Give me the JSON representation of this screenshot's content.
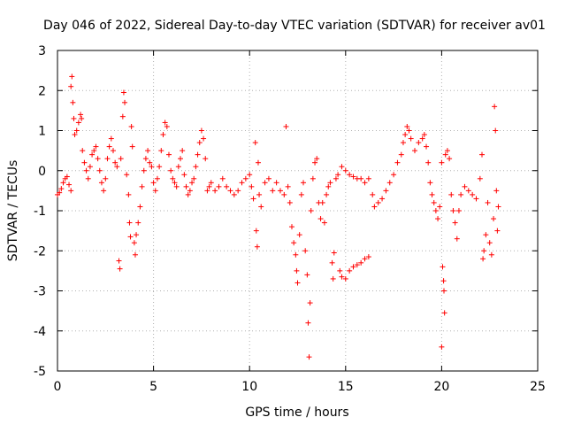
{
  "chart_data": {
    "type": "scatter",
    "title": "Day 046 of 2022, Sidereal Day-to-day VTEC variation (SDTVAR) for receiver av01",
    "xlabel": "GPS time / hours",
    "ylabel": "SDTVAR / TECUs",
    "xlim": [
      0,
      25
    ],
    "ylim": [
      -5,
      3
    ],
    "xticks": [
      0,
      5,
      10,
      15,
      20,
      25
    ],
    "yticks": [
      -5,
      -4,
      -3,
      -2,
      -1,
      0,
      1,
      2,
      3
    ],
    "xtick_labels": [
      "0",
      "5",
      "10",
      "15",
      "20",
      "25"
    ],
    "ytick_labels": [
      "-5",
      "-4",
      "-3",
      "-2",
      "-1",
      "0",
      "1",
      "2",
      "3"
    ],
    "grid": true,
    "marker": "+",
    "color": "#ff0000",
    "series": [
      {
        "name": "av01",
        "points": [
          [
            0.0,
            -0.6
          ],
          [
            0.1,
            -0.55
          ],
          [
            0.2,
            -0.45
          ],
          [
            0.3,
            -0.3
          ],
          [
            0.4,
            -0.2
          ],
          [
            0.5,
            -0.15
          ],
          [
            0.6,
            -0.35
          ],
          [
            0.7,
            -0.5
          ],
          [
            0.7,
            2.1
          ],
          [
            0.75,
            2.35
          ],
          [
            0.8,
            1.7
          ],
          [
            0.85,
            1.3
          ],
          [
            0.9,
            0.9
          ],
          [
            1.0,
            1.0
          ],
          [
            1.1,
            1.2
          ],
          [
            1.2,
            1.4
          ],
          [
            1.25,
            1.3
          ],
          [
            1.3,
            0.5
          ],
          [
            1.4,
            0.2
          ],
          [
            1.5,
            0.0
          ],
          [
            1.6,
            -0.2
          ],
          [
            1.7,
            0.1
          ],
          [
            1.8,
            0.4
          ],
          [
            1.9,
            0.5
          ],
          [
            2.0,
            0.6
          ],
          [
            2.1,
            0.3
          ],
          [
            2.2,
            0.0
          ],
          [
            2.3,
            -0.3
          ],
          [
            2.4,
            -0.5
          ],
          [
            2.5,
            -0.2
          ],
          [
            2.6,
            0.3
          ],
          [
            2.7,
            0.6
          ],
          [
            2.8,
            0.8
          ],
          [
            2.9,
            0.5
          ],
          [
            3.0,
            0.2
          ],
          [
            3.1,
            0.1
          ],
          [
            3.2,
            -2.25
          ],
          [
            3.25,
            -2.45
          ],
          [
            3.3,
            0.3
          ],
          [
            3.4,
            1.35
          ],
          [
            3.45,
            1.95
          ],
          [
            3.5,
            1.7
          ],
          [
            3.6,
            -0.1
          ],
          [
            3.7,
            -0.6
          ],
          [
            3.75,
            -1.3
          ],
          [
            3.8,
            -1.65
          ],
          [
            3.85,
            1.1
          ],
          [
            3.9,
            0.6
          ],
          [
            4.0,
            -1.8
          ],
          [
            4.05,
            -2.1
          ],
          [
            4.1,
            -1.6
          ],
          [
            4.2,
            -1.3
          ],
          [
            4.3,
            -0.9
          ],
          [
            4.4,
            -0.4
          ],
          [
            4.5,
            0.0
          ],
          [
            4.6,
            0.3
          ],
          [
            4.7,
            0.5
          ],
          [
            4.8,
            0.2
          ],
          [
            4.9,
            0.1
          ],
          [
            5.0,
            -0.3
          ],
          [
            5.1,
            -0.5
          ],
          [
            5.2,
            -0.2
          ],
          [
            5.3,
            0.1
          ],
          [
            5.4,
            0.5
          ],
          [
            5.5,
            0.9
          ],
          [
            5.6,
            1.2
          ],
          [
            5.7,
            1.1
          ],
          [
            5.8,
            0.4
          ],
          [
            5.9,
            0.0
          ],
          [
            6.0,
            -0.2
          ],
          [
            6.1,
            -0.3
          ],
          [
            6.2,
            -0.4
          ],
          [
            6.3,
            0.1
          ],
          [
            6.4,
            0.3
          ],
          [
            6.5,
            0.5
          ],
          [
            6.6,
            -0.1
          ],
          [
            6.7,
            -0.4
          ],
          [
            6.8,
            -0.6
          ],
          [
            6.9,
            -0.5
          ],
          [
            7.0,
            -0.3
          ],
          [
            7.1,
            -0.2
          ],
          [
            7.2,
            0.1
          ],
          [
            7.3,
            0.4
          ],
          [
            7.4,
            0.7
          ],
          [
            7.5,
            1.0
          ],
          [
            7.6,
            0.8
          ],
          [
            7.7,
            0.3
          ],
          [
            7.8,
            -0.5
          ],
          [
            7.9,
            -0.4
          ],
          [
            8.0,
            -0.3
          ],
          [
            8.2,
            -0.5
          ],
          [
            8.4,
            -0.4
          ],
          [
            8.6,
            -0.2
          ],
          [
            8.8,
            -0.4
          ],
          [
            9.0,
            -0.5
          ],
          [
            9.2,
            -0.6
          ],
          [
            9.4,
            -0.5
          ],
          [
            9.6,
            -0.3
          ],
          [
            9.8,
            -0.2
          ],
          [
            10.0,
            -0.1
          ],
          [
            10.1,
            -0.4
          ],
          [
            10.2,
            -0.7
          ],
          [
            10.3,
            0.7
          ],
          [
            10.35,
            -1.5
          ],
          [
            10.4,
            -1.9
          ],
          [
            10.45,
            0.2
          ],
          [
            10.5,
            -0.6
          ],
          [
            10.6,
            -0.9
          ],
          [
            10.8,
            -0.3
          ],
          [
            11.0,
            -0.2
          ],
          [
            11.2,
            -0.5
          ],
          [
            11.4,
            -0.3
          ],
          [
            11.6,
            -0.5
          ],
          [
            11.8,
            -0.6
          ],
          [
            11.9,
            1.1
          ],
          [
            12.0,
            -0.4
          ],
          [
            12.1,
            -0.8
          ],
          [
            12.2,
            -1.4
          ],
          [
            12.3,
            -1.8
          ],
          [
            12.4,
            -2.1
          ],
          [
            12.45,
            -2.5
          ],
          [
            12.5,
            -2.8
          ],
          [
            12.6,
            -1.6
          ],
          [
            12.7,
            -0.6
          ],
          [
            12.8,
            -0.3
          ],
          [
            12.9,
            -2.0
          ],
          [
            13.0,
            -2.6
          ],
          [
            13.05,
            -3.8
          ],
          [
            13.1,
            -4.65
          ],
          [
            13.15,
            -3.3
          ],
          [
            13.2,
            -1.0
          ],
          [
            13.3,
            -0.2
          ],
          [
            13.4,
            0.2
          ],
          [
            13.5,
            0.3
          ],
          [
            13.6,
            -0.8
          ],
          [
            13.7,
            -1.2
          ],
          [
            13.8,
            -0.8
          ],
          [
            13.9,
            -1.3
          ],
          [
            14.0,
            -0.6
          ],
          [
            14.1,
            -0.4
          ],
          [
            14.2,
            -0.3
          ],
          [
            14.3,
            -2.3
          ],
          [
            14.35,
            -2.7
          ],
          [
            14.4,
            -2.05
          ],
          [
            14.5,
            -0.2
          ],
          [
            14.6,
            -0.1
          ],
          [
            14.7,
            -2.5
          ],
          [
            14.8,
            -2.65
          ],
          [
            15.0,
            -2.7
          ],
          [
            15.2,
            -2.5
          ],
          [
            15.4,
            -2.4
          ],
          [
            15.6,
            -2.35
          ],
          [
            15.8,
            -2.3
          ],
          [
            16.0,
            -2.2
          ],
          [
            16.2,
            -2.15
          ],
          [
            14.8,
            0.1
          ],
          [
            15.0,
            0.0
          ],
          [
            15.2,
            -0.1
          ],
          [
            15.4,
            -0.15
          ],
          [
            15.6,
            -0.2
          ],
          [
            15.8,
            -0.2
          ],
          [
            16.0,
            -0.3
          ],
          [
            16.2,
            -0.2
          ],
          [
            16.4,
            -0.6
          ],
          [
            16.5,
            -0.9
          ],
          [
            16.7,
            -0.8
          ],
          [
            16.9,
            -0.7
          ],
          [
            17.1,
            -0.5
          ],
          [
            17.3,
            -0.3
          ],
          [
            17.5,
            -0.1
          ],
          [
            17.7,
            0.2
          ],
          [
            17.9,
            0.4
          ],
          [
            18.0,
            0.7
          ],
          [
            18.1,
            0.9
          ],
          [
            18.2,
            1.1
          ],
          [
            18.3,
            1.0
          ],
          [
            18.4,
            0.8
          ],
          [
            18.6,
            0.5
          ],
          [
            18.8,
            0.7
          ],
          [
            19.0,
            0.8
          ],
          [
            19.1,
            0.9
          ],
          [
            19.2,
            0.6
          ],
          [
            19.3,
            0.2
          ],
          [
            19.4,
            -0.3
          ],
          [
            19.5,
            -0.6
          ],
          [
            19.6,
            -0.8
          ],
          [
            19.7,
            -1.0
          ],
          [
            19.8,
            -1.2
          ],
          [
            19.9,
            -0.9
          ],
          [
            20.0,
            0.2
          ],
          [
            20.05,
            -2.4
          ],
          [
            20.1,
            -2.75
          ],
          [
            20.12,
            -3.0
          ],
          [
            20.15,
            -3.55
          ],
          [
            20.0,
            -4.4
          ],
          [
            20.2,
            0.4
          ],
          [
            20.3,
            0.5
          ],
          [
            20.4,
            0.3
          ],
          [
            20.5,
            -0.6
          ],
          [
            20.6,
            -1.0
          ],
          [
            20.7,
            -1.3
          ],
          [
            20.8,
            -1.7
          ],
          [
            20.9,
            -1.0
          ],
          [
            21.0,
            -0.6
          ],
          [
            21.2,
            -0.4
          ],
          [
            21.4,
            -0.5
          ],
          [
            21.6,
            -0.6
          ],
          [
            21.8,
            -0.7
          ],
          [
            22.0,
            -0.2
          ],
          [
            22.1,
            0.4
          ],
          [
            22.15,
            -2.2
          ],
          [
            22.2,
            -2.0
          ],
          [
            22.3,
            -1.6
          ],
          [
            22.4,
            -0.8
          ],
          [
            22.5,
            -1.8
          ],
          [
            22.6,
            -2.1
          ],
          [
            22.7,
            -1.2
          ],
          [
            22.75,
            1.6
          ],
          [
            22.8,
            1.0
          ],
          [
            22.85,
            -0.5
          ],
          [
            22.9,
            -1.5
          ],
          [
            22.95,
            -0.9
          ]
        ]
      }
    ]
  }
}
